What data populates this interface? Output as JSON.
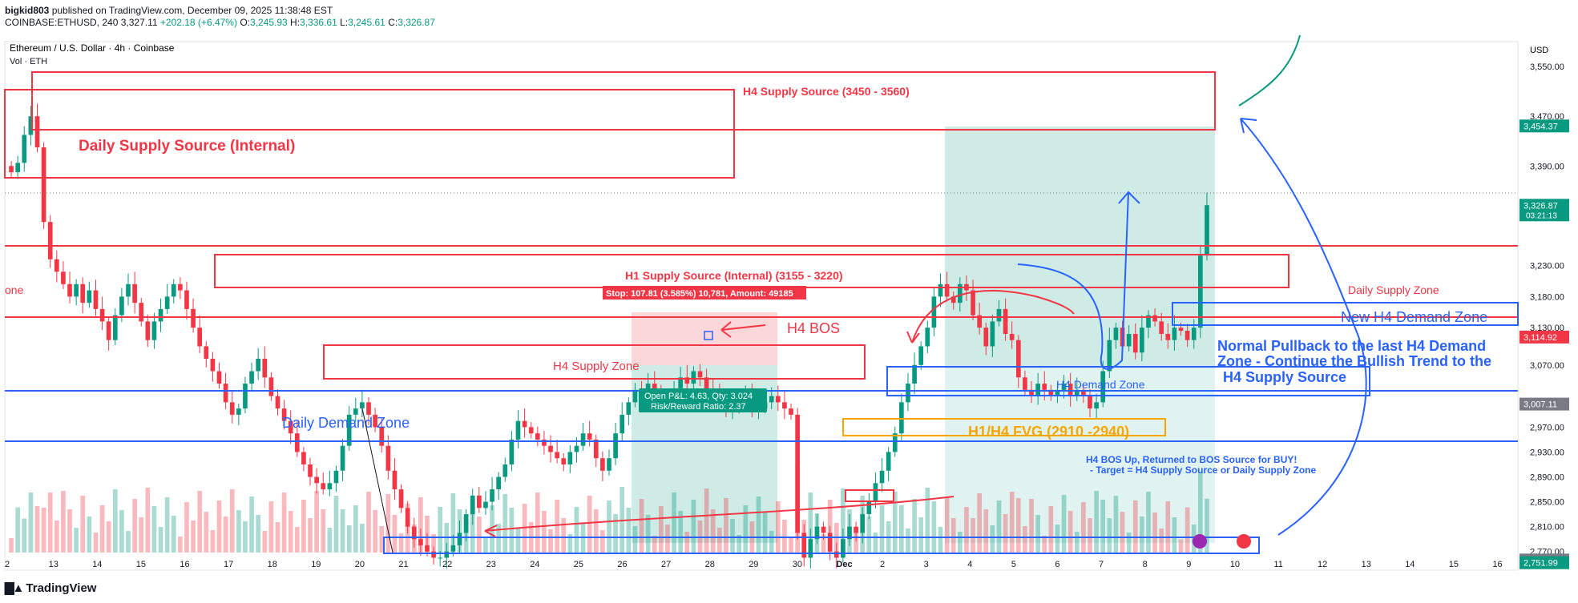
{
  "header": {
    "user": "bigkid803",
    "published": "published on TradingView.com, December 09, 2025 11:38:48 EST",
    "symbol": "COINBASE:ETHUSD, 240",
    "last": "3,327.11",
    "change": "+202.18 (+6.47%)",
    "o_label": "O:",
    "o": "3,245.93",
    "h_label": "H:",
    "h": "3,336.61",
    "l_label": "L:",
    "l": "3,245.61",
    "c_label": "C:",
    "c": "3,326.87"
  },
  "legend": {
    "title": "Ethereum / U.S. Dollar · 4h · Coinbase",
    "vol": "Vol · ETH"
  },
  "price_axis": {
    "currency": "USD",
    "ticks": [
      "3,550.00",
      "3,470.00",
      "3,390.00",
      "3,310.00",
      "3,230.00",
      "3,180.00",
      "3,130.00",
      "3,070.00",
      "3,010.00",
      "2,970.00",
      "2,930.00",
      "2,890.00",
      "2,850.00",
      "2,810.00",
      "2,770.00"
    ],
    "badges": [
      {
        "price": 3454.37,
        "text": "3,454.37",
        "color": "#089981"
      },
      {
        "price": 3326.87,
        "text": "3,326.87",
        "sub": "03:21:13",
        "color": "#089981"
      },
      {
        "price": 3114.92,
        "text": "3,114.92",
        "color": "#f23645"
      },
      {
        "price": 3007.11,
        "text": "3,007.11",
        "color": "#787b86"
      },
      {
        "price": 2756.34,
        "text": "2,756.34",
        "color": "#787b86"
      },
      {
        "price": 2751.99,
        "text": "2,751.99",
        "color": "#089981"
      }
    ]
  },
  "time_axis": [
    "2",
    "13",
    "14",
    "15",
    "16",
    "17",
    "18",
    "19",
    "20",
    "21",
    "22",
    "23",
    "24",
    "25",
    "26",
    "27",
    "28",
    "29",
    "30",
    "Dec",
    "2",
    "3",
    "4",
    "5",
    "6",
    "7",
    "8",
    "9",
    "10",
    "11",
    "12",
    "13",
    "14",
    "15",
    "16"
  ],
  "annotations": {
    "h4_supply_source": "H4 Supply Source (3450 - 3560)",
    "daily_supply_internal": "Daily Supply Source (Internal)",
    "h1_supply_internal": "H1 Supply Source (Internal) (3155 - 3220)",
    "stop_label": "Stop: 107.81 (3.585%) 10,781, Amount: 49185",
    "h4_bos": "H4 BOS",
    "h4_supply_zone": "H4 Supply Zone",
    "open_pl": "Open P&L: 4.63, Qty: 3.024",
    "rr": "Risk/Reward Ratio: 2.37",
    "daily_demand_zone": "Daily Demand Zone",
    "h4_demand_zone": "H4 Demand Zone",
    "fvg": "H1/H4 FVG (2910 -2940)",
    "daily_supply_zone": "Daily Supply Zone",
    "new_h4_demand": "New H4 Demand Zone",
    "pullback1": "Normal Pullback to the last H4 Demand",
    "pullback2": "Zone - Continue the Bullish Trend to the",
    "pullback3": "H4 Supply Source",
    "bos_note1": "H4 BOS Up, Returned to BOS Source for BUY!",
    "bos_note2": "- Target = H4 Supply Source or Daily Supply Zone",
    "left_edge": "one"
  },
  "chart_data": {
    "type": "candlestick",
    "title": "Ethereum / U.S. Dollar · 4h · Coinbase",
    "ylim": [
      2740,
      3590
    ],
    "x_start": "2025-11-12",
    "x_end": "2025-12-16",
    "close": [
      3380,
      3395,
      3440,
      3470,
      3420,
      3300,
      3240,
      3220,
      3200,
      3180,
      3200,
      3170,
      3190,
      3160,
      3140,
      3110,
      3150,
      3180,
      3200,
      3170,
      3140,
      3110,
      3140,
      3160,
      3180,
      3200,
      3190,
      3160,
      3130,
      3100,
      3080,
      3060,
      3040,
      3010,
      2990,
      3000,
      3040,
      3060,
      3080,
      3050,
      3020,
      3000,
      2980,
      2960,
      2930,
      2910,
      2890,
      2880,
      2870,
      2880,
      2900,
      2940,
      2990,
      3000,
      3010,
      2990,
      2970,
      2940,
      2900,
      2870,
      2840,
      2810,
      2790,
      2780,
      2770,
      2760,
      2760,
      2770,
      2780,
      2800,
      2830,
      2860,
      2840,
      2850,
      2870,
      2890,
      2910,
      2950,
      2980,
      2970,
      2960,
      2950,
      2940,
      2930,
      2920,
      2910,
      2930,
      2940,
      2960,
      2950,
      2920,
      2900,
      2920,
      2960,
      2990,
      3010,
      3030,
      3020,
      3040,
      3030,
      3020,
      3010,
      3030,
      3050,
      3040,
      3060,
      3050,
      3030,
      3020,
      3010,
      3000,
      3000,
      3010,
      3020,
      3000,
      3000,
      3010,
      3020,
      3010,
      3000,
      2990,
      2800,
      2760,
      2790,
      2810,
      2800,
      2770,
      2760,
      2790,
      2810,
      2800,
      2830,
      2850,
      2880,
      2900,
      2930,
      2960,
      3010,
      3040,
      3070,
      3100,
      3130,
      3180,
      3200,
      3180,
      3170,
      3200,
      3190,
      3150,
      3130,
      3100,
      3140,
      3160,
      3120,
      3110,
      3050,
      3030,
      3020,
      3040,
      3030,
      3020,
      3030,
      3040,
      3020,
      3030,
      3020,
      3000,
      3010,
      3060,
      3110,
      3130,
      3100,
      3120,
      3090,
      3130,
      3150,
      3140,
      3120,
      3110,
      3130,
      3125,
      3110,
      3130,
      3246,
      3327
    ],
    "annotated_levels": {
      "h4_supply_source": [
        3450,
        3560
      ],
      "h1_supply_source": [
        3155,
        3220
      ],
      "h1_h4_fvg": [
        2910,
        2940
      ]
    },
    "series": [
      {
        "name": "Vol · ETH"
      }
    ]
  }
}
